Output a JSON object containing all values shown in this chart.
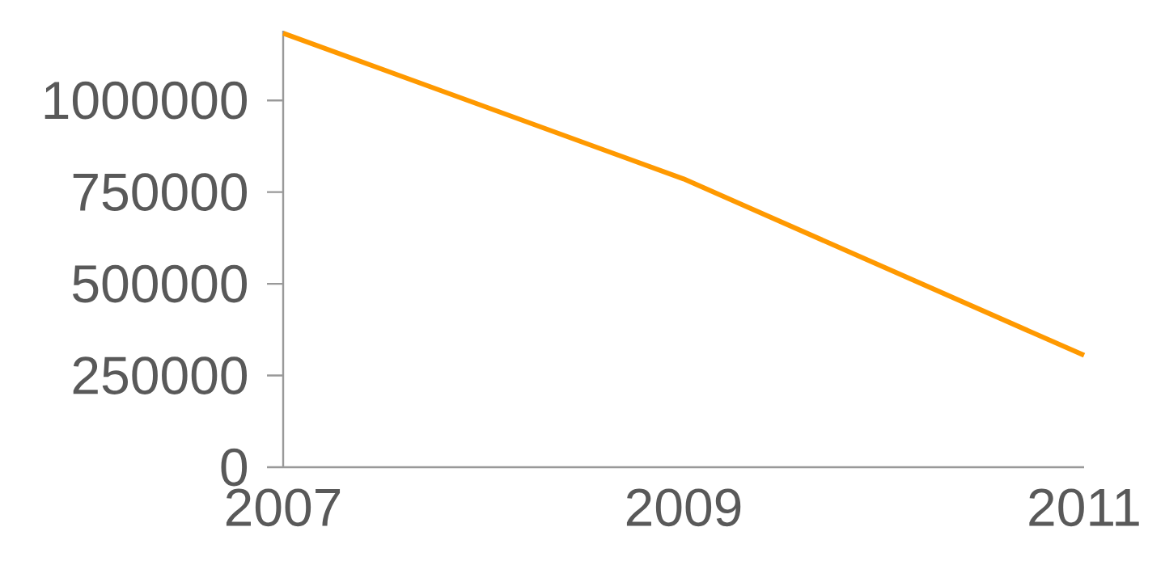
{
  "chart_data": {
    "type": "line",
    "x": [
      2007,
      2009,
      2011
    ],
    "series": [
      {
        "color": "#ff9900",
        "values": [
          1183000,
          786000,
          305000
        ]
      }
    ],
    "xlim": [
      2007,
      2011
    ],
    "xticks": [
      2007,
      2009,
      2011
    ],
    "ylim": [
      0,
      1190000
    ],
    "yticks": [
      0,
      250000,
      500000,
      750000,
      1000000
    ],
    "grid": false,
    "marker": "none",
    "line_style": "solid"
  }
}
